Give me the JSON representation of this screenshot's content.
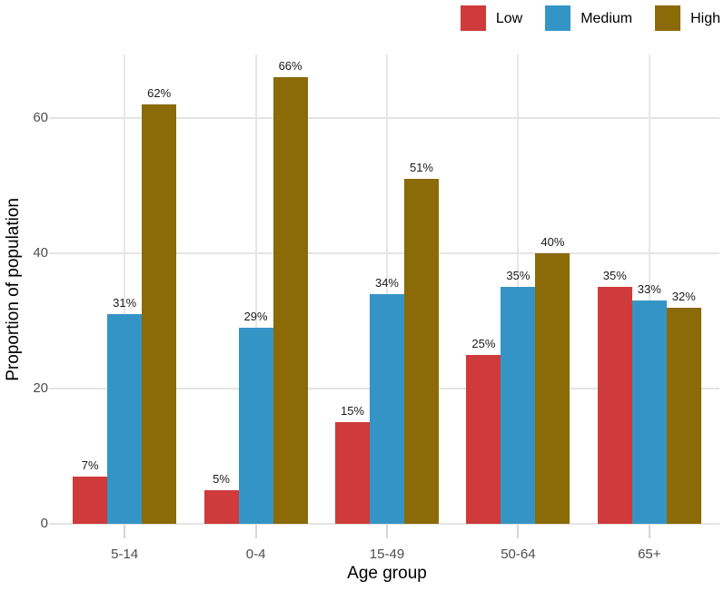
{
  "chart_data": {
    "type": "bar",
    "xlabel": "Age group",
    "ylabel": "Proportion of population",
    "categories": [
      "5-14",
      "0-4",
      "15-49",
      "50-64",
      "65+"
    ],
    "series": [
      {
        "name": "Low",
        "color": "#cf3a3a",
        "values": [
          7,
          5,
          15,
          25,
          35
        ],
        "labels": [
          "7%",
          "5%",
          "15%",
          "25%",
          "35%"
        ]
      },
      {
        "name": "Medium",
        "color": "#3594c6",
        "values": [
          31,
          29,
          34,
          35,
          33
        ],
        "labels": [
          "31%",
          "29%",
          "34%",
          "35%",
          "33%"
        ]
      },
      {
        "name": "High",
        "color": "#8b6a08",
        "values": [
          62,
          66,
          51,
          40,
          32
        ],
        "labels": [
          "62%",
          "66%",
          "51%",
          "40%",
          "32%"
        ]
      }
    ],
    "yticks": [
      0,
      20,
      40,
      60
    ],
    "ylim": [
      0,
      69.4
    ],
    "grid": true,
    "legend_position": "top-right"
  },
  "legend": {
    "items": [
      {
        "label": "Low",
        "color": "#cf3a3a"
      },
      {
        "label": "Medium",
        "color": "#3594c6"
      },
      {
        "label": "High",
        "color": "#8b6a08"
      }
    ]
  },
  "style": {
    "background": "#ffffff",
    "grid_color": "#e4e4e4",
    "axis_tick_color": "#d6d6d6",
    "tick_label_color": "#4d4d4d",
    "bar_label_color": "#1a1a1a"
  }
}
